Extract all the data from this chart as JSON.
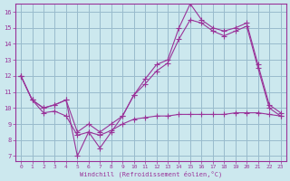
{
  "xlabel": "Windchill (Refroidissement éolien,°C)",
  "background_color": "#cce8ee",
  "line_color": "#993399",
  "grid_color": "#99bbcc",
  "ylim": [
    6.7,
    16.5
  ],
  "xlim": [
    -0.5,
    23.5
  ],
  "yticks": [
    7,
    8,
    9,
    10,
    11,
    12,
    13,
    14,
    15,
    16
  ],
  "xticks": [
    0,
    1,
    2,
    3,
    4,
    5,
    6,
    7,
    8,
    9,
    10,
    11,
    12,
    13,
    14,
    15,
    16,
    17,
    18,
    19,
    20,
    21,
    22,
    23
  ],
  "series1_x": [
    0,
    1,
    2,
    3,
    4,
    5,
    6,
    7,
    8,
    9,
    10,
    11,
    12,
    13,
    14,
    15,
    16,
    17,
    18,
    19,
    20,
    21,
    22,
    23
  ],
  "series1_y": [
    12.0,
    10.5,
    10.0,
    10.2,
    10.5,
    7.0,
    8.5,
    7.5,
    8.5,
    9.5,
    10.8,
    11.8,
    12.7,
    13.0,
    15.0,
    16.5,
    15.5,
    15.0,
    14.8,
    15.0,
    15.3,
    12.7,
    10.2,
    9.7
  ],
  "series2_x": [
    0,
    1,
    2,
    3,
    4,
    5,
    6,
    7,
    8,
    9,
    10,
    11,
    12,
    13,
    14,
    15,
    16,
    17,
    18,
    19,
    20,
    21,
    22,
    23
  ],
  "series2_y": [
    12.0,
    10.5,
    10.0,
    10.2,
    10.5,
    8.5,
    9.0,
    8.5,
    9.0,
    9.5,
    10.8,
    11.5,
    12.3,
    12.8,
    14.3,
    15.5,
    15.3,
    14.8,
    14.5,
    14.8,
    15.1,
    12.5,
    10.0,
    9.5
  ],
  "series3_x": [
    0,
    1,
    2,
    3,
    4,
    5,
    6,
    7,
    8,
    9,
    10,
    11,
    12,
    13,
    14,
    15,
    16,
    17,
    18,
    19,
    20,
    21,
    22,
    23
  ],
  "series3_y": [
    12.0,
    10.5,
    9.7,
    9.8,
    9.5,
    8.3,
    8.5,
    8.3,
    8.6,
    9.0,
    9.3,
    9.4,
    9.5,
    9.5,
    9.6,
    9.6,
    9.6,
    9.6,
    9.6,
    9.7,
    9.7,
    9.7,
    9.6,
    9.5
  ]
}
